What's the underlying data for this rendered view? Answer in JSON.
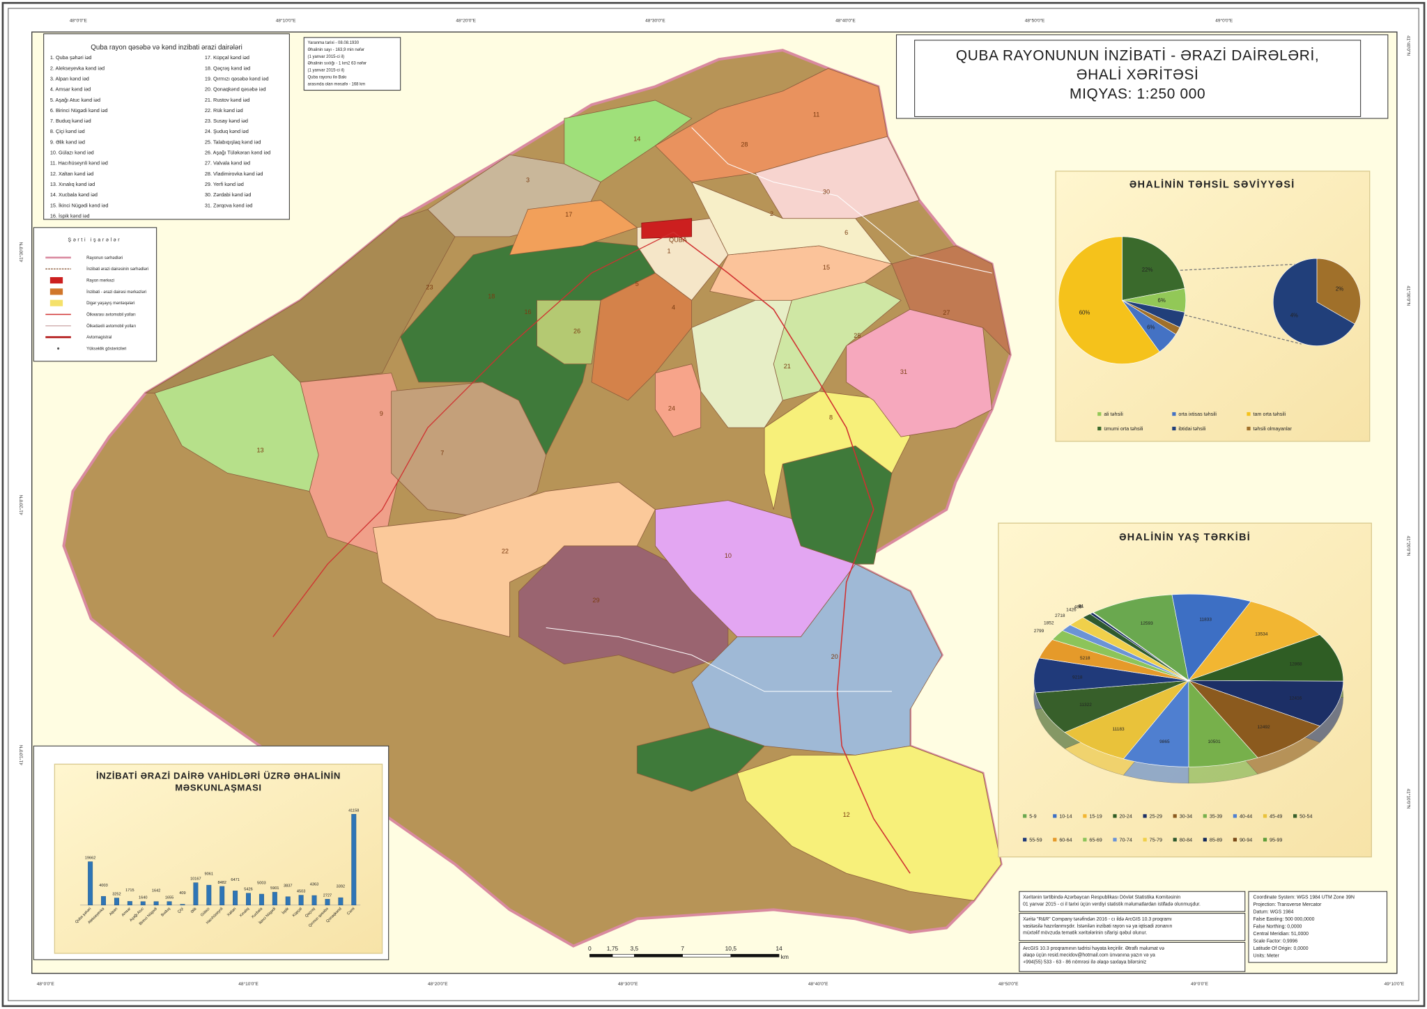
{
  "map": {
    "title": [
      "QUBA RAYONUNUN İNZİBATİ - ƏRAZİ DAİRƏLƏRİ,",
      "ƏHALİ XƏRİTƏSİ",
      "MIQYAS: 1:250 000"
    ],
    "lon_labels": [
      "48°0'0\"E",
      "48°10'0\"E",
      "48°20'0\"E",
      "48°30'0\"E",
      "48°40'0\"E",
      "48°50'0\"E",
      "49°0'0\"E",
      "49°10'0\"E"
    ],
    "lat_labels": [
      "41°40'0\"N",
      "41°30'0\"N",
      "41°20'0\"N",
      "41°10'0\"N"
    ],
    "region_labels": [
      "14",
      "28",
      "11",
      "3",
      "17",
      "30",
      "2",
      "6",
      "23",
      "18",
      "16",
      "26",
      "5",
      "4",
      "1",
      "15",
      "25",
      "27",
      "21",
      "24",
      "31",
      "13",
      "9",
      "7",
      "8",
      "22",
      "10",
      "29",
      "20",
      "12",
      "QUBA"
    ]
  },
  "units_legend": {
    "title": "Quba rayon qəsəbə və kənd inzibati ərazi dairələri",
    "items": [
      "1. Quba şəhəri iəd",
      "2. Alekseyevka kənd iəd",
      "3. Alpan kənd iəd",
      "4. Amsar kənd iəd",
      "5. Aşağı Atuc kənd iəd",
      "6. Birinci Nügədi kənd iəd",
      "7. Buduq kənd iəd",
      "8. Çiçi kənd iəd",
      "9. Əlik kənd iəd",
      "10. Gülazı kənd iəd",
      "11. Hacıhüseynli kənd iəd",
      "12. Xaltan kənd iəd",
      "13. Xınalıq kənd iəd",
      "14. Xucbala kənd iəd",
      "15. İkinci Nügədi kənd iəd",
      "16. İspik kənd iəd",
      "17. Küpçal kənd iəd",
      "18. Qəçrəş kənd iəd",
      "19. Qırmızı qəsəbə kənd iəd",
      "20. Qonaqkənd qəsəbə iəd",
      "21. Rustov kənd iəd",
      "22. Rük kənd iəd",
      "23. Susay kənd iəd",
      "24. Şuduq kənd iəd",
      "25. Talabıqışlaq kənd iəd",
      "26. Aşağı Tüləkəran kənd iəd",
      "27. Valvala kənd iəd",
      "28. Vladimirovka kənd iəd",
      "29. Yerfi kənd iəd",
      "30. Zərdabi kənd iəd",
      "31. Zərqova kənd iəd"
    ]
  },
  "info": [
    "Yaranma tarixi - 08.08.1930",
    "Əhalinin sayı - 163,9 min nəfər",
    "(1 yanvar 2015-ci il)",
    "Əhalinin sıxlığı - 1 km2  63 nəfər",
    "(1 yanvar 2015-ci il)",
    "Quba rayonu ilə Bakı",
    "arasında olan məsafə - 168 km"
  ],
  "symbols_legend": {
    "title": "Şərti işarələr",
    "items": [
      "Rayonun sərhədləri",
      "İnzibati ərazi dairəsinin sərhədləri",
      "Rayon mərkəzi",
      "İnzibati - ərazi dairəsi mərkəzləri",
      "Digər yaşayış məntəqələri",
      "Ölkəarası avtomobil yolları",
      "Ölkədaxili avtomobil yolları",
      "Avtomagistral",
      "Yüksəklik göstəriciləri"
    ]
  },
  "chart_data": [
    {
      "type": "pie",
      "title": "ƏHALİNİN TƏHSİL SƏVİYYƏSİ",
      "categories": [
        "ali təhsili",
        "orta ixtisas təhsili",
        "tam orta təhsili",
        "ümumi orta təhsili",
        "ibtidai təhsili",
        "təhsili olmayanlar"
      ],
      "values": [
        6,
        6,
        60,
        22,
        4,
        2
      ],
      "value_labels": [
        "6%",
        "6%",
        "60%",
        "22%",
        "4%",
        "2%"
      ],
      "colors": [
        "#92c857",
        "#4472c4",
        "#f5c21b",
        "#3a6a2c",
        "#213f7a",
        "#a0702a"
      ]
    },
    {
      "type": "pie",
      "title": "ƏHALİNİN YAŞ TƏRKİBİ",
      "categories": [
        "5-9",
        "10-14",
        "15-19",
        "20-24",
        "25-29",
        "30-34",
        "35-39",
        "40-44",
        "45-49",
        "50-54",
        "55-59",
        "60-64",
        "65-69",
        "70-74",
        "75-79",
        "80-84",
        "85-89",
        "90-94",
        "95-99"
      ],
      "values": [
        12593,
        11833,
        13534,
        12868,
        12416,
        12492,
        10501,
        9865,
        11183,
        11322,
        9218,
        5218,
        2799,
        1852,
        2718,
        1426,
        489,
        84,
        21
      ],
      "colors": [
        "#6aa84f",
        "#3d6fc4",
        "#f2b632",
        "#2f5d24",
        "#1c2f66",
        "#8b5a1e",
        "#77b04b",
        "#4f7fd0",
        "#e9c23a",
        "#375f2a",
        "#203a7a",
        "#e59a2a",
        "#8cc45a",
        "#6b93d6",
        "#f0d04a",
        "#2e5a2e",
        "#142a5c",
        "#7a4a18",
        "#5f9e3a"
      ]
    },
    {
      "type": "bar",
      "title": [
        "İNZİBATİ ƏRAZİ DAİRƏ VAHİDLƏRİ ÜZRƏ ƏHALİNİN",
        "MƏSKUNLAŞMASI"
      ],
      "categories": [
        "Quba şəhəri",
        "Alekseyevka",
        "Alpan",
        "Amsar",
        "Aşağı Atuc",
        "Birinci Nügədi",
        "Buduq",
        "Çiçi",
        "Əlik",
        "Gülazı",
        "Hacıhüseynli",
        "Xaltan",
        "Xınalıq",
        "Xucbala",
        "İkinci Nügədi",
        "İspik",
        "Küpçal",
        "Qəçrəş",
        "Qırmızı qəsəbə",
        "Qonaqkənd",
        "Cəmi"
      ],
      "values": [
        19662,
        4003,
        3252,
        1715,
        1640,
        1642,
        1655,
        409,
        10167,
        9061,
        8482,
        6471,
        5426,
        5003,
        5901,
        3837,
        4503,
        4363,
        2727,
        3392,
        41158
      ],
      "color": "#2e75b6"
    }
  ],
  "scale_bar": {
    "labels": [
      "0",
      "1,75",
      "3,5",
      "7",
      "10,5",
      "14"
    ],
    "unit": "km"
  },
  "notes": [
    [
      "Xəritənin tərtibində Azərbaycan Respublikası Dövlət Statistika Komitəsinin",
      "01 yanvar 2015 - ci il tarixi üçün verdiyi statistik məlumatlardan istifadə olunmuşdur."
    ],
    [
      "Xəritə \"R&R\" Company tərəfindən 2016 - cı ildə ArcGIS 10.3 proqramı",
      "vasitəsilə hazırlanmışdır. İstənilən inzibati rayon və ya iqtisadi zonanın",
      "müxtəlif mövzuda tematik xəritələrinin sifarişi qəbul olunur."
    ],
    [
      "ArcGIS 10.3 proqramının tədrisi həyata keçirilir. Ətraflı məlumat və",
      "əlaqə üçün resid.mecidov@hotmail.com ünvanına yazın və ya",
      "+994(55) 533 - 63 - 86 nömrəsi ilə əlaqə saxlaya bilərsiniz"
    ]
  ],
  "projection": [
    "Coordinate System: WGS 1984 UTM Zone 39N",
    "Projection: Transverse Mercator",
    "Datum: WGS 1984",
    "False Easting: 500 000,0000",
    "False Northing: 0,0000",
    "Central Meridian: 51,0000",
    "Scale Factor: 0,9996",
    "Latitude Of Origin: 0,0000",
    "Units: Meter"
  ]
}
